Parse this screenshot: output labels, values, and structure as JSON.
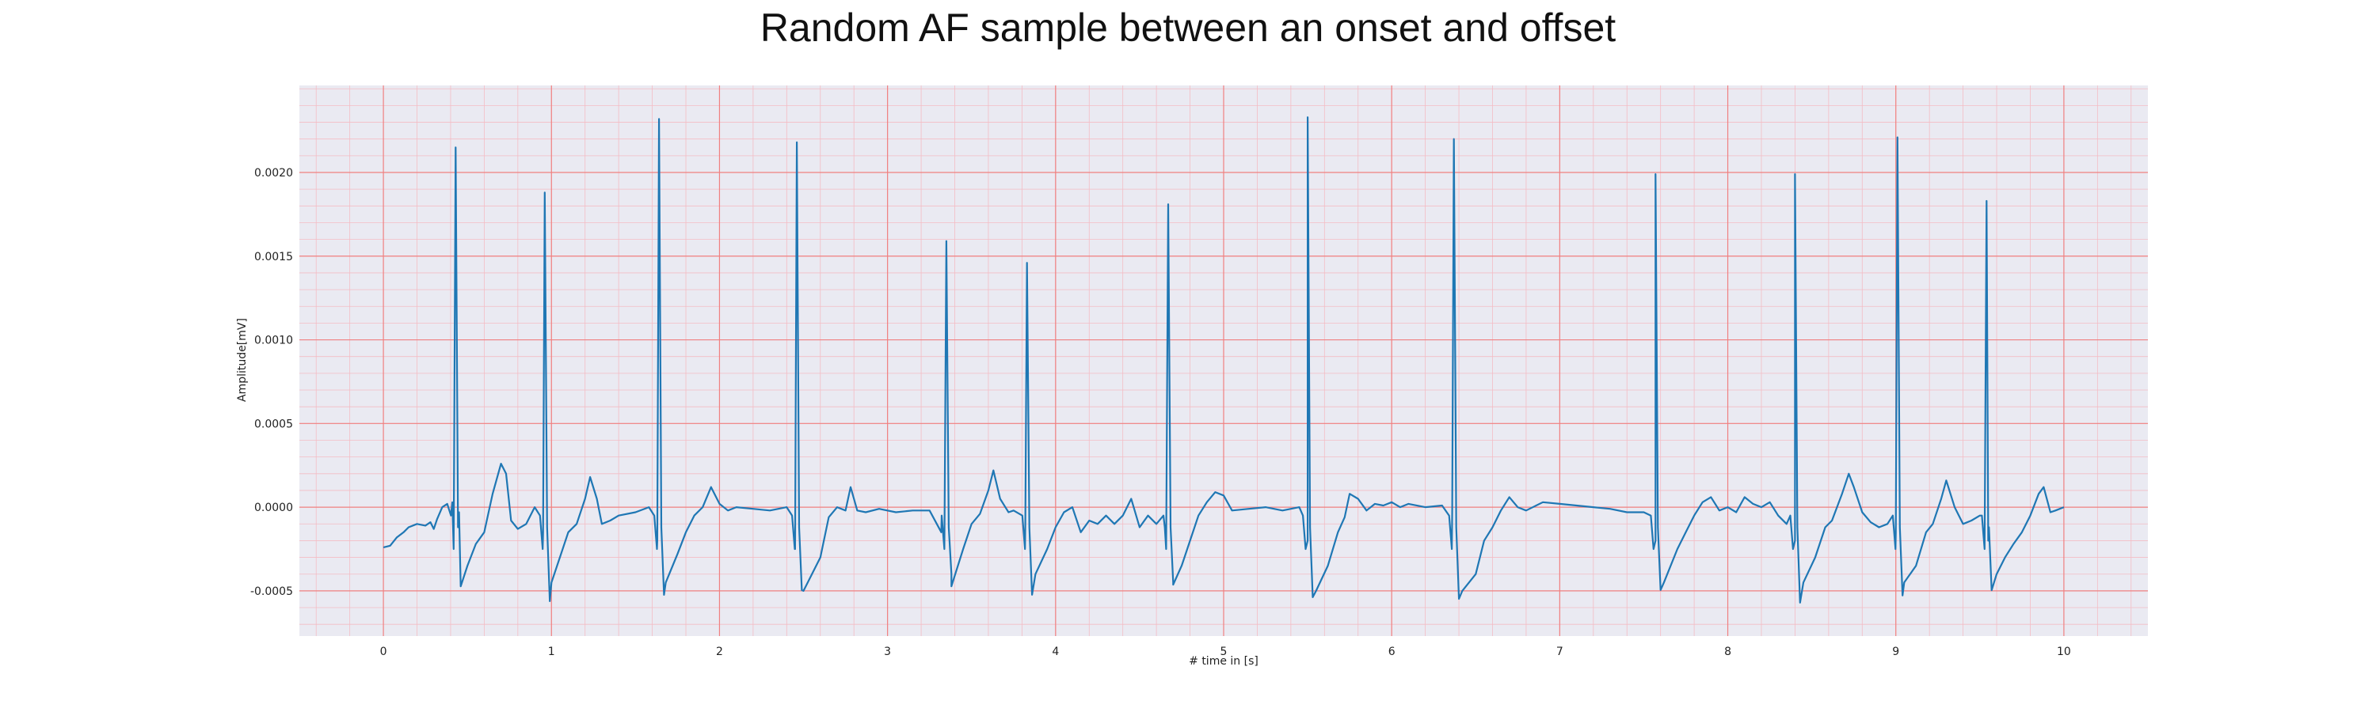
{
  "chart_data": {
    "type": "line",
    "title": "Random AF sample between an onset and offset",
    "xlabel": "# time in [s]",
    "ylabel": "Amplitude[mV]",
    "xlim": [
      -0.5,
      10.5
    ],
    "ylim": [
      -0.00077,
      0.00252
    ],
    "xticks": [
      "0",
      "1",
      "2",
      "3",
      "4",
      "5",
      "6",
      "7",
      "8",
      "9",
      "10"
    ],
    "yticks": [
      "-0.0005",
      "0.0000",
      "0.0005",
      "0.0010",
      "0.0015",
      "0.0020"
    ],
    "grid": true,
    "minor_grid": true,
    "colors": {
      "line": "#1f77b4",
      "background": "#eaeaf2",
      "major_grid": "#f08080",
      "minor_grid": "#f4bcc4"
    },
    "baseline": [
      [
        0,
        -0.00024
      ],
      [
        0.04,
        -0.00023
      ],
      [
        0.08,
        -0.00018
      ],
      [
        0.12,
        -0.00015
      ],
      [
        0.15,
        -0.00012
      ],
      [
        0.2,
        -0.0001
      ],
      [
        0.25,
        -0.00011
      ],
      [
        0.28,
        -9e-05
      ],
      [
        0.3,
        -0.00013
      ],
      [
        0.32,
        -7e-05
      ],
      [
        0.35,
        0.0
      ],
      [
        0.38,
        2e-05
      ],
      [
        0.41,
        3e-05
      ],
      [
        0.45,
        -3e-05
      ],
      [
        0.5,
        -0.00035
      ],
      [
        0.55,
        -0.00022
      ],
      [
        0.6,
        -0.00015
      ],
      [
        0.65,
        8e-05
      ],
      [
        0.7,
        0.00026
      ],
      [
        0.73,
        0.0002
      ],
      [
        0.76,
        -8e-05
      ],
      [
        0.8,
        -0.00013
      ],
      [
        0.85,
        -0.0001
      ],
      [
        0.9,
        0.0
      ],
      [
        0.95,
        -0.00015
      ],
      [
        1.0,
        -0.00045
      ],
      [
        1.05,
        -0.0003
      ],
      [
        1.1,
        -0.00015
      ],
      [
        1.15,
        -0.0001
      ],
      [
        1.2,
        5e-05
      ],
      [
        1.23,
        0.00018
      ],
      [
        1.27,
        5e-05
      ],
      [
        1.3,
        -0.0001
      ],
      [
        1.35,
        -8e-05
      ],
      [
        1.4,
        -5e-05
      ],
      [
        1.5,
        -3e-05
      ],
      [
        1.58,
        0.0
      ],
      [
        1.63,
        -0.0002
      ],
      [
        1.68,
        -0.00045
      ],
      [
        1.75,
        -0.00028
      ],
      [
        1.8,
        -0.00015
      ],
      [
        1.85,
        -5e-05
      ],
      [
        1.9,
        0.0
      ],
      [
        1.95,
        0.00012
      ],
      [
        2.0,
        2e-05
      ],
      [
        2.05,
        -2e-05
      ],
      [
        2.1,
        0.0
      ],
      [
        2.2,
        -1e-05
      ],
      [
        2.3,
        -2e-05
      ],
      [
        2.4,
        0.0
      ],
      [
        2.45,
        -0.00025
      ],
      [
        2.5,
        -0.0005
      ],
      [
        2.6,
        -0.0003
      ],
      [
        2.65,
        -6e-05
      ],
      [
        2.7,
        0.0
      ],
      [
        2.75,
        -2e-05
      ],
      [
        2.78,
        0.00012
      ],
      [
        2.82,
        -2e-05
      ],
      [
        2.87,
        -3e-05
      ],
      [
        2.95,
        -1e-05
      ],
      [
        3.05,
        -3e-05
      ],
      [
        3.15,
        -2e-05
      ],
      [
        3.25,
        -2e-05
      ],
      [
        3.32,
        -0.00015
      ],
      [
        3.38,
        -0.0004
      ],
      [
        3.45,
        -0.00025
      ],
      [
        3.5,
        -0.0001
      ],
      [
        3.55,
        -4e-05
      ],
      [
        3.6,
        0.0001
      ],
      [
        3.63,
        0.00022
      ],
      [
        3.67,
        5e-05
      ],
      [
        3.72,
        -3e-05
      ],
      [
        3.75,
        -2e-05
      ],
      [
        3.82,
        -0.0001
      ],
      [
        3.88,
        -0.0004
      ],
      [
        3.95,
        -0.00025
      ],
      [
        4.0,
        -0.00012
      ],
      [
        4.05,
        -3e-05
      ],
      [
        4.1,
        0.0
      ],
      [
        4.15,
        -0.00015
      ],
      [
        4.2,
        -8e-05
      ],
      [
        4.25,
        -0.0001
      ],
      [
        4.3,
        -5e-05
      ],
      [
        4.35,
        -0.0001
      ],
      [
        4.4,
        -5e-05
      ],
      [
        4.45,
        5e-05
      ],
      [
        4.5,
        -0.00012
      ],
      [
        4.55,
        -5e-05
      ],
      [
        4.6,
        -0.0001
      ],
      [
        4.65,
        -0.00012
      ],
      [
        4.7,
        -0.00045
      ],
      [
        4.75,
        -0.00035
      ],
      [
        4.8,
        -0.0002
      ],
      [
        4.85,
        -5e-05
      ],
      [
        4.9,
        3e-05
      ],
      [
        4.95,
        9e-05
      ],
      [
        5.0,
        7e-05
      ],
      [
        5.05,
        -2e-05
      ],
      [
        5.15,
        -1e-05
      ],
      [
        5.25,
        0.0
      ],
      [
        5.35,
        -2e-05
      ],
      [
        5.45,
        0.0
      ],
      [
        5.5,
        -0.0002
      ],
      [
        5.55,
        -0.0005
      ],
      [
        5.62,
        -0.00035
      ],
      [
        5.68,
        -0.00015
      ],
      [
        5.72,
        -6e-05
      ],
      [
        5.75,
        8e-05
      ],
      [
        5.8,
        5e-05
      ],
      [
        5.85,
        -2e-05
      ],
      [
        5.9,
        2e-05
      ],
      [
        5.95,
        1e-05
      ],
      [
        6.0,
        3e-05
      ],
      [
        6.05,
        0.0
      ],
      [
        6.1,
        2e-05
      ],
      [
        6.2,
        0.0
      ],
      [
        6.3,
        1e-05
      ],
      [
        6.36,
        -2e-05
      ],
      [
        6.42,
        -0.0005
      ],
      [
        6.5,
        -0.0004
      ],
      [
        6.55,
        -0.0002
      ],
      [
        6.6,
        -0.00012
      ],
      [
        6.65,
        -2e-05
      ],
      [
        6.7,
        6e-05
      ],
      [
        6.75,
        0.0
      ],
      [
        6.8,
        -2e-05
      ],
      [
        6.9,
        3e-05
      ],
      [
        7.0,
        2e-05
      ],
      [
        7.1,
        1e-05
      ],
      [
        7.2,
        0.0
      ],
      [
        7.3,
        -1e-05
      ],
      [
        7.4,
        -3e-05
      ],
      [
        7.5,
        -3e-05
      ],
      [
        7.57,
        -0.0002
      ],
      [
        7.62,
        -0.00045
      ],
      [
        7.7,
        -0.00025
      ],
      [
        7.75,
        -0.00015
      ],
      [
        7.8,
        -5e-05
      ],
      [
        7.85,
        3e-05
      ],
      [
        7.9,
        6e-05
      ],
      [
        7.95,
        -2e-05
      ],
      [
        8.0,
        0.0
      ],
      [
        8.05,
        -3e-05
      ],
      [
        8.1,
        6e-05
      ],
      [
        8.15,
        2e-05
      ],
      [
        8.2,
        0.0
      ],
      [
        8.25,
        3e-05
      ],
      [
        8.3,
        -5e-05
      ],
      [
        8.35,
        -0.0001
      ],
      [
        8.4,
        -0.0002
      ],
      [
        8.45,
        -0.00045
      ],
      [
        8.52,
        -0.0003
      ],
      [
        8.58,
        -0.00012
      ],
      [
        8.62,
        -8e-05
      ],
      [
        8.68,
        8e-05
      ],
      [
        8.72,
        0.0002
      ],
      [
        8.75,
        0.00012
      ],
      [
        8.8,
        -3e-05
      ],
      [
        8.85,
        -9e-05
      ],
      [
        8.9,
        -0.00012
      ],
      [
        8.95,
        -0.0001
      ],
      [
        9.0,
        -0.00015
      ],
      [
        9.05,
        -0.00045
      ],
      [
        9.12,
        -0.00035
      ],
      [
        9.18,
        -0.00015
      ],
      [
        9.22,
        -0.0001
      ],
      [
        9.27,
        5e-05
      ],
      [
        9.3,
        0.00016
      ],
      [
        9.35,
        0.0
      ],
      [
        9.4,
        -0.0001
      ],
      [
        9.45,
        -8e-05
      ],
      [
        9.5,
        -5e-05
      ],
      [
        9.55,
        -0.0002
      ],
      [
        9.6,
        -0.0004
      ],
      [
        9.65,
        -0.0003
      ],
      [
        9.7,
        -0.00022
      ],
      [
        9.75,
        -0.00015
      ],
      [
        9.8,
        -5e-05
      ],
      [
        9.85,
        8e-05
      ],
      [
        9.88,
        0.00012
      ],
      [
        9.92,
        -3e-05
      ],
      [
        9.95,
        -2e-05
      ],
      [
        10.0,
        0.0
      ]
    ],
    "beats": [
      {
        "t": 0.43,
        "peak": 0.00215
      },
      {
        "t": 0.96,
        "peak": 0.00188
      },
      {
        "t": 1.64,
        "peak": 0.00232
      },
      {
        "t": 2.46,
        "peak": 0.00218
      },
      {
        "t": 3.35,
        "peak": 0.00159
      },
      {
        "t": 3.83,
        "peak": 0.00146
      },
      {
        "t": 4.67,
        "peak": 0.00181
      },
      {
        "t": 5.5,
        "peak": 0.00233
      },
      {
        "t": 6.37,
        "peak": 0.0022
      },
      {
        "t": 7.57,
        "peak": 0.00199
      },
      {
        "t": 8.4,
        "peak": 0.00199
      },
      {
        "t": 9.01,
        "peak": 0.00221
      },
      {
        "t": 9.54,
        "peak": 0.00183
      }
    ],
    "trough": -0.00058
  }
}
